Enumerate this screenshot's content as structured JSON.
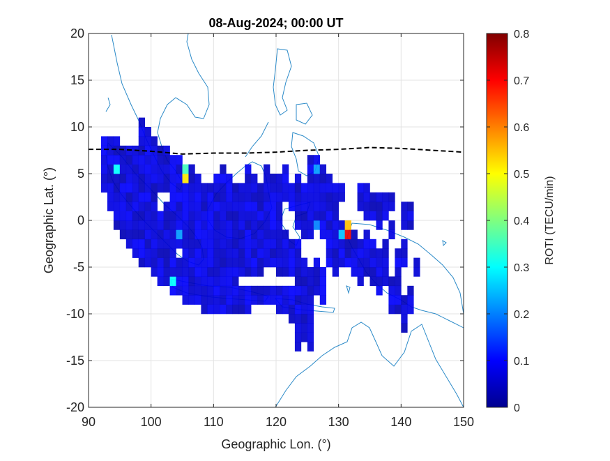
{
  "chart_data": {
    "type": "heatmap",
    "title": "08-Aug-2024; 00:00 UT",
    "xlabel": "Geographic Lon. (°)",
    "ylabel": "Geographic Lat. (°)",
    "xlim": [
      90,
      150
    ],
    "ylim": [
      -20,
      20
    ],
    "xticks": [
      "90",
      "100",
      "110",
      "120",
      "130",
      "140",
      "150"
    ],
    "yticks": [
      "20",
      "15",
      "10",
      "5",
      "0",
      "-5",
      "-10",
      "-15",
      "-20"
    ],
    "grid": true,
    "colorbar": {
      "label": "ROTI (TECU/min)",
      "range": [
        0,
        0.8
      ],
      "ticks": [
        "0",
        "0.1",
        "0.2",
        "0.3",
        "0.4",
        "0.5",
        "0.6",
        "0.7",
        "0.8"
      ],
      "colormap": "jet"
    },
    "magnetic_equator": {
      "style": "dashed",
      "color": "#000000",
      "points": [
        [
          90,
          7.6
        ],
        [
          95,
          7.6
        ],
        [
          100,
          7.4
        ],
        [
          105,
          7.1
        ],
        [
          110,
          7.2
        ],
        [
          115,
          7.2
        ],
        [
          120,
          7.3
        ],
        [
          125,
          7.5
        ],
        [
          130,
          7.6
        ],
        [
          135,
          7.8
        ],
        [
          140,
          7.7
        ],
        [
          145,
          7.5
        ],
        [
          150,
          7.3
        ]
      ]
    },
    "cells": {
      "values_encoding": "each entry is [lon, lat, ROTI] for one 1°x1° cell",
      "hotspots": [
        [
          131,
          -2,
          0.72
        ],
        [
          131,
          -1,
          0.55
        ],
        [
          105,
          4,
          0.52
        ],
        [
          105,
          5,
          0.35
        ],
        [
          94,
          5,
          0.3
        ],
        [
          103,
          -7,
          0.3
        ],
        [
          126,
          5,
          0.22
        ],
        [
          126,
          -1,
          0.2
        ],
        [
          104,
          -2,
          0.22
        ],
        [
          130,
          -2,
          0.25
        ]
      ]
    }
  }
}
